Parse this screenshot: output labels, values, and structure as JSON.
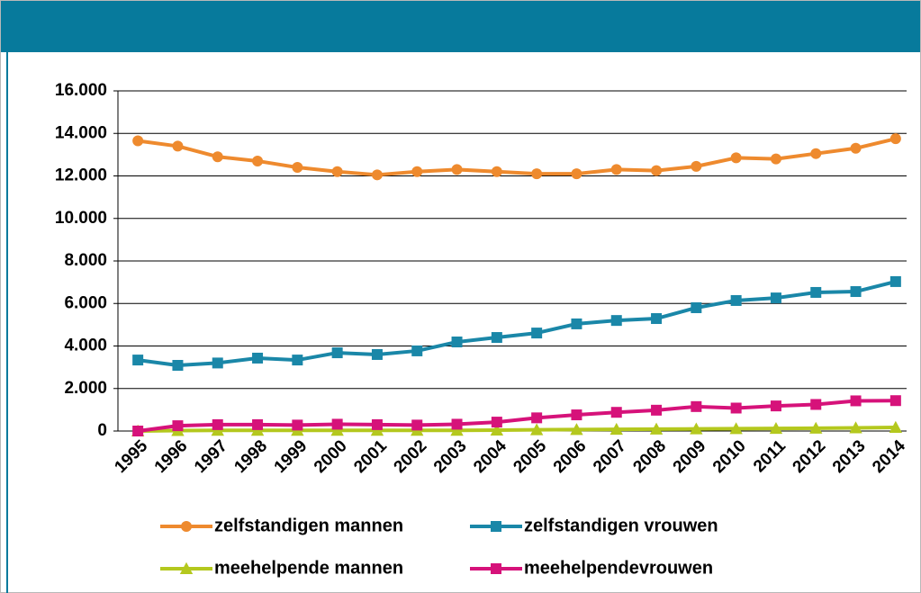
{
  "chart_data": {
    "type": "line",
    "categories": [
      "1995",
      "1996",
      "1997",
      "1998",
      "1999",
      "2000",
      "2001",
      "2002",
      "2003",
      "2004",
      "2005",
      "2006",
      "2007",
      "2008",
      "2009",
      "2010",
      "2011",
      "2012",
      "2013",
      "2014"
    ],
    "series": [
      {
        "name": "zelfstandigen mannen",
        "color": "#ee8a2e",
        "marker": "circle",
        "values": [
          13650,
          13400,
          12900,
          12700,
          12400,
          12200,
          12050,
          12200,
          12300,
          12200,
          12100,
          12100,
          12300,
          12250,
          12450,
          12850,
          12800,
          13050,
          13300,
          13750
        ]
      },
      {
        "name": "zelfstandigen vrouwen",
        "color": "#1a87a8",
        "marker": "square",
        "values": [
          3340,
          3090,
          3200,
          3430,
          3340,
          3680,
          3600,
          3770,
          4190,
          4400,
          4610,
          5040,
          5200,
          5290,
          5800,
          6140,
          6260,
          6520,
          6560,
          7030
        ]
      },
      {
        "name": "meehelpende mannen",
        "color": "#b4c81e",
        "marker": "triangle",
        "values": [
          0,
          20,
          30,
          30,
          30,
          30,
          30,
          30,
          30,
          40,
          60,
          70,
          80,
          90,
          100,
          110,
          120,
          130,
          150,
          170
        ]
      },
      {
        "name": "meehelpendevrouwen",
        "color": "#d6127a",
        "marker": "square",
        "values": [
          0,
          250,
          300,
          300,
          280,
          320,
          300,
          280,
          320,
          420,
          620,
          760,
          880,
          980,
          1150,
          1080,
          1180,
          1250,
          1420,
          1430
        ]
      }
    ],
    "ylim": [
      0,
      16000
    ],
    "yticks": [
      0,
      {
        "value": 2000,
        "label": "2.000"
      },
      {
        "value": 4000,
        "label": "4.000"
      },
      {
        "value": 6000,
        "label": "6.000"
      },
      {
        "value": 8000,
        "label": "8.000"
      },
      {
        "value": 10000,
        "label": "10.000"
      },
      {
        "value": 12000,
        "label": "12.000"
      },
      {
        "value": 14000,
        "label": "14.000"
      },
      {
        "value": 16000,
        "label": "16.000"
      }
    ],
    "grid": true
  }
}
